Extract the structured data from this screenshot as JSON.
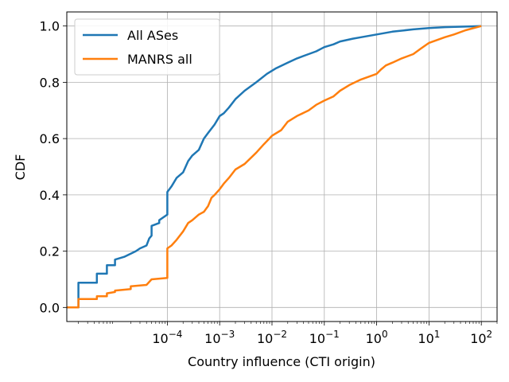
{
  "chart_data": {
    "type": "line",
    "xlabel": "Country influence (CTI origin)",
    "ylabel": "CDF",
    "xscale": "log",
    "xlim": [
      1.2e-06,
      200
    ],
    "ylim": [
      -0.05,
      1.05
    ],
    "grid": true,
    "legend_position": "top-left",
    "x_ticks": [
      {
        "value": 0.0001,
        "base": "10",
        "exp": "−4"
      },
      {
        "value": 0.001,
        "base": "10",
        "exp": "−3"
      },
      {
        "value": 0.01,
        "base": "10",
        "exp": "−2"
      },
      {
        "value": 0.1,
        "base": "10",
        "exp": "−1"
      },
      {
        "value": 1,
        "base": "10",
        "exp": "0"
      },
      {
        "value": 10,
        "base": "10",
        "exp": "1"
      },
      {
        "value": 100,
        "base": "10",
        "exp": "2"
      }
    ],
    "y_ticks": [
      {
        "value": 0.0,
        "label": "0.0"
      },
      {
        "value": 0.2,
        "label": "0.2"
      },
      {
        "value": 0.4,
        "label": "0.4"
      },
      {
        "value": 0.6,
        "label": "0.6"
      },
      {
        "value": 0.8,
        "label": "0.8"
      },
      {
        "value": 1.0,
        "label": "1.0"
      }
    ],
    "series": [
      {
        "name": "All ASes",
        "color": "#1f77b4",
        "points": [
          [
            1.2e-06,
            0.0
          ],
          [
            2e-06,
            0.0
          ],
          [
            2e-06,
            0.088
          ],
          [
            4.5e-06,
            0.088
          ],
          [
            4.5e-06,
            0.12
          ],
          [
            7e-06,
            0.12
          ],
          [
            7e-06,
            0.15
          ],
          [
            1e-05,
            0.15
          ],
          [
            1e-05,
            0.17
          ],
          [
            1.5e-05,
            0.18
          ],
          [
            2.5e-05,
            0.2
          ],
          [
            3e-05,
            0.21
          ],
          [
            4e-05,
            0.22
          ],
          [
            4.5e-05,
            0.245
          ],
          [
            5e-05,
            0.255
          ],
          [
            5e-05,
            0.29
          ],
          [
            7e-05,
            0.3
          ],
          [
            7e-05,
            0.31
          ],
          [
            0.0001,
            0.33
          ],
          [
            0.0001,
            0.41
          ],
          [
            0.00012,
            0.43
          ],
          [
            0.00015,
            0.46
          ],
          [
            0.0002,
            0.48
          ],
          [
            0.00025,
            0.52
          ],
          [
            0.0003,
            0.54
          ],
          [
            0.0004,
            0.56
          ],
          [
            0.0005,
            0.6
          ],
          [
            0.0006,
            0.62
          ],
          [
            0.0008,
            0.65
          ],
          [
            0.001,
            0.68
          ],
          [
            0.0012,
            0.69
          ],
          [
            0.0015,
            0.71
          ],
          [
            0.002,
            0.74
          ],
          [
            0.003,
            0.77
          ],
          [
            0.005,
            0.8
          ],
          [
            0.008,
            0.83
          ],
          [
            0.012,
            0.85
          ],
          [
            0.02,
            0.87
          ],
          [
            0.03,
            0.885
          ],
          [
            0.05,
            0.9
          ],
          [
            0.07,
            0.91
          ],
          [
            0.1,
            0.925
          ],
          [
            0.15,
            0.935
          ],
          [
            0.2,
            0.945
          ],
          [
            0.35,
            0.955
          ],
          [
            0.5,
            0.96
          ],
          [
            1,
            0.97
          ],
          [
            2,
            0.98
          ],
          [
            5,
            0.988
          ],
          [
            10,
            0.993
          ],
          [
            20,
            0.996
          ],
          [
            50,
            0.998
          ],
          [
            100,
            1.0
          ]
        ]
      },
      {
        "name": "MANRS all",
        "color": "#ff7f0e",
        "points": [
          [
            1.2e-06,
            0.0
          ],
          [
            2e-06,
            0.0
          ],
          [
            2e-06,
            0.03
          ],
          [
            4.5e-06,
            0.03
          ],
          [
            4.5e-06,
            0.04
          ],
          [
            7e-06,
            0.04
          ],
          [
            7e-06,
            0.05
          ],
          [
            1e-05,
            0.055
          ],
          [
            1e-05,
            0.06
          ],
          [
            2e-05,
            0.065
          ],
          [
            2e-05,
            0.075
          ],
          [
            4e-05,
            0.08
          ],
          [
            5e-05,
            0.1
          ],
          [
            0.0001,
            0.105
          ],
          [
            0.0001,
            0.21
          ],
          [
            0.00012,
            0.22
          ],
          [
            0.00015,
            0.24
          ],
          [
            0.0002,
            0.27
          ],
          [
            0.00025,
            0.3
          ],
          [
            0.0003,
            0.31
          ],
          [
            0.0004,
            0.33
          ],
          [
            0.0005,
            0.34
          ],
          [
            0.0006,
            0.36
          ],
          [
            0.0007,
            0.39
          ],
          [
            0.0008,
            0.4
          ],
          [
            0.001,
            0.42
          ],
          [
            0.0012,
            0.44
          ],
          [
            0.0015,
            0.46
          ],
          [
            0.002,
            0.49
          ],
          [
            0.003,
            0.51
          ],
          [
            0.005,
            0.55
          ],
          [
            0.007,
            0.58
          ],
          [
            0.01,
            0.61
          ],
          [
            0.015,
            0.63
          ],
          [
            0.02,
            0.66
          ],
          [
            0.03,
            0.68
          ],
          [
            0.05,
            0.7
          ],
          [
            0.07,
            0.72
          ],
          [
            0.1,
            0.735
          ],
          [
            0.15,
            0.75
          ],
          [
            0.2,
            0.77
          ],
          [
            0.3,
            0.79
          ],
          [
            0.5,
            0.81
          ],
          [
            1,
            0.83
          ],
          [
            1.2,
            0.845
          ],
          [
            1.5,
            0.86
          ],
          [
            2,
            0.87
          ],
          [
            3,
            0.885
          ],
          [
            5,
            0.9
          ],
          [
            7,
            0.92
          ],
          [
            10,
            0.94
          ],
          [
            20,
            0.96
          ],
          [
            30,
            0.97
          ],
          [
            50,
            0.985
          ],
          [
            100,
            1.0
          ]
        ]
      }
    ]
  }
}
